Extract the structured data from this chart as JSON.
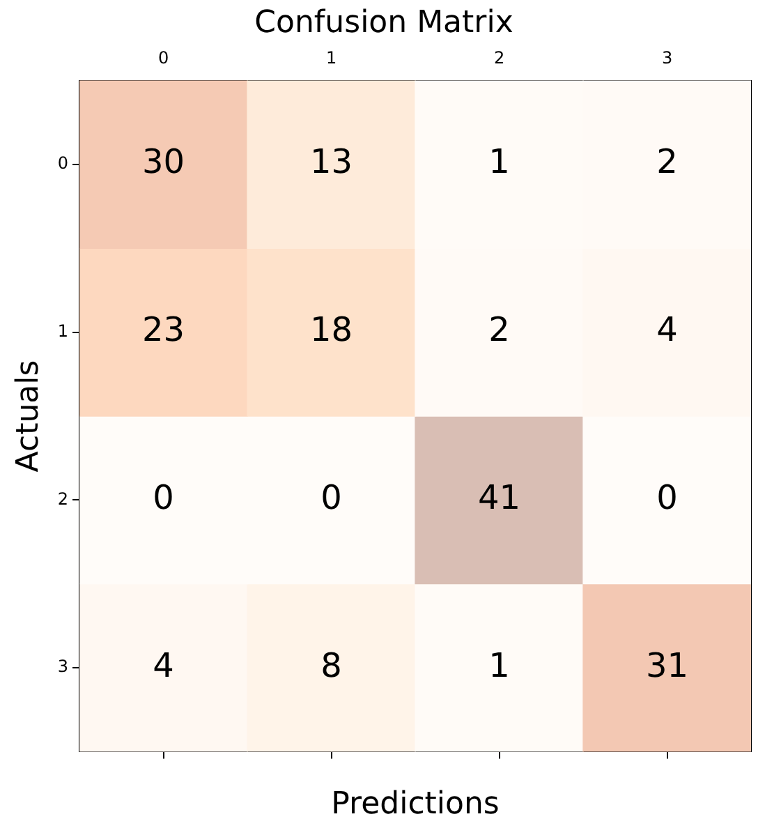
{
  "chart_data": {
    "type": "heatmap",
    "title": "Confusion Matrix",
    "xlabel": "Predictions",
    "ylabel": "Actuals",
    "categories": [
      "0",
      "1",
      "2",
      "3"
    ],
    "y_categories": [
      "0",
      "1",
      "2",
      "3"
    ],
    "cells": [
      [
        30,
        13,
        1,
        2
      ],
      [
        23,
        18,
        2,
        4
      ],
      [
        0,
        0,
        41,
        0
      ],
      [
        4,
        8,
        1,
        31
      ]
    ],
    "data_labels": true,
    "grid": false
  }
}
